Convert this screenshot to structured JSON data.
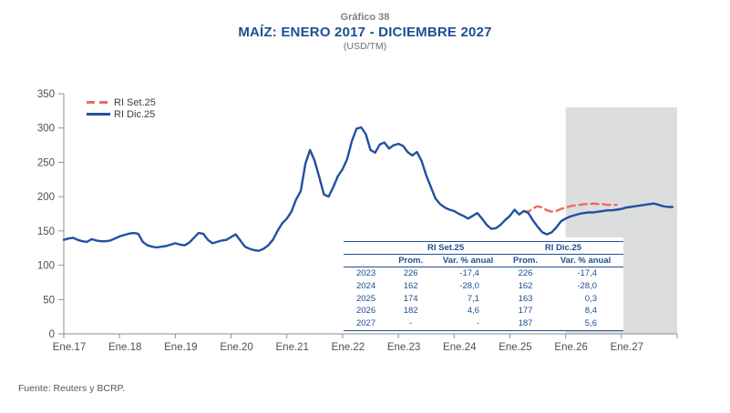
{
  "header": {
    "figure_label": "Gráfico 38",
    "title": "MAÍZ: ENERO 2017 - DICIEMBRE 2027",
    "unit": "(USD/TM)"
  },
  "legend": {
    "items": [
      {
        "label": "RI Set.25",
        "color": "#ec6a67",
        "style": "dashed"
      },
      {
        "label": "RI Dic.25",
        "color": "#2150a0",
        "style": "solid"
      }
    ]
  },
  "table": {
    "group_headers": [
      "RI Set.25",
      "RI Dic.25"
    ],
    "col_headers": [
      "",
      "Prom.",
      "Var. % anual",
      "Prom.",
      "Var. % anual"
    ],
    "rows": [
      {
        "year": "2023",
        "set_prom": "226",
        "set_var": "-17,4",
        "dic_prom": "226",
        "dic_var": "-17,4"
      },
      {
        "year": "2024",
        "set_prom": "162",
        "set_var": "-28,0",
        "dic_prom": "162",
        "dic_var": "-28,0"
      },
      {
        "year": "2025",
        "set_prom": "174",
        "set_var": "7,1",
        "dic_prom": "163",
        "dic_var": "0,3"
      },
      {
        "year": "2026",
        "set_prom": "182",
        "set_var": "4,6",
        "dic_prom": "177",
        "dic_var": "8,4"
      },
      {
        "year": "2027",
        "set_prom": "-",
        "set_var": "-",
        "dic_prom": "187",
        "dic_var": "5,6"
      }
    ]
  },
  "footer": {
    "source": "Fuente: Reuters y BCRP."
  },
  "chart_data": {
    "type": "line",
    "title": "MAÍZ: ENERO 2017 - DICIEMBRE 2027",
    "ylabel": "USD/TM",
    "ylim": [
      0,
      350
    ],
    "y_ticks": [
      0,
      50,
      100,
      150,
      200,
      250,
      300,
      350
    ],
    "x_tick_labels": [
      "Ene.17",
      "Ene.18",
      "Ene.19",
      "Ene.20",
      "Ene.21",
      "Ene.22",
      "Ene.23",
      "Ene.24",
      "Ene.25",
      "Ene.26",
      "Ene.27"
    ],
    "months_total": 132,
    "grid": false,
    "legend_position": "top-left-inside",
    "forecast_region": {
      "start_month_index": 108,
      "end_month_index": 132,
      "top_value": 330,
      "color": "#dcdddd"
    },
    "axis_color": "#8c8f93",
    "tick_label_color": "#4d4f53",
    "series": [
      {
        "name": "RI Dic.25",
        "color": "#2150a0",
        "style": "solid",
        "start_month_index": 0,
        "monthly_values": [
          137,
          139,
          140,
          137,
          135,
          134,
          138,
          136,
          135,
          135,
          136,
          139,
          142,
          144,
          146,
          147,
          146,
          134,
          129,
          127,
          126,
          127,
          128,
          130,
          132,
          130,
          129,
          133,
          140,
          147,
          146,
          137,
          132,
          134,
          136,
          137,
          141,
          145,
          136,
          127,
          124,
          122,
          121,
          124,
          129,
          137,
          150,
          161,
          168,
          178,
          196,
          208,
          248,
          268,
          252,
          228,
          203,
          200,
          214,
          230,
          240,
          255,
          281,
          299,
          301,
          291,
          268,
          264,
          276,
          279,
          270,
          275,
          277,
          274,
          265,
          260,
          265,
          252,
          231,
          214,
          197,
          189,
          184,
          181,
          179,
          175,
          172,
          168,
          172,
          176,
          168,
          159,
          153,
          154,
          159,
          166,
          172,
          181,
          174,
          179,
          176,
          165,
          156,
          148,
          145,
          148,
          155,
          164,
          168,
          171,
          173,
          175,
          176,
          177,
          177,
          178,
          179,
          180,
          180,
          181,
          182,
          184,
          185,
          186,
          187,
          188,
          189,
          190,
          188,
          186,
          185,
          185
        ]
      },
      {
        "name": "RI Set.25",
        "color": "#ec6a67",
        "style": "dashed",
        "start_month_index": 99,
        "monthly_values": [
          179,
          178,
          183,
          186,
          184,
          180,
          178,
          179,
          182,
          184,
          186,
          187,
          188,
          189,
          189,
          190,
          189,
          189,
          188,
          188,
          188
        ]
      }
    ]
  }
}
